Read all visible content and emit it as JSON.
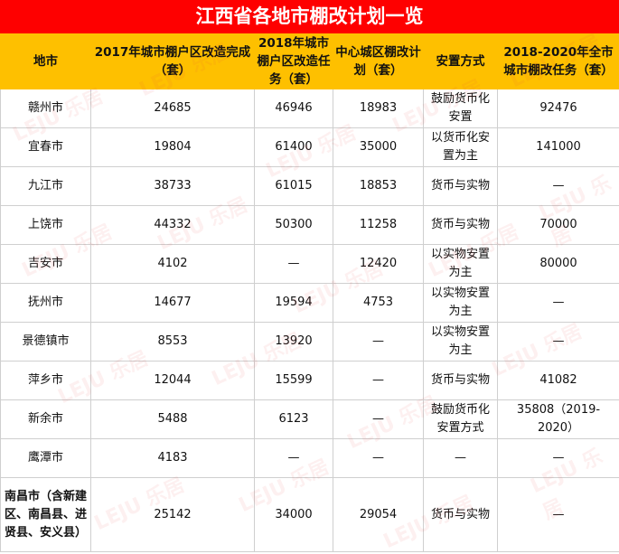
{
  "title": "江西省各地市棚改计划一览",
  "headers": [
    "地市",
    "2017年城市棚户区改造完成（套）",
    "2018年城市棚户区改造任务（套）",
    "中心城区棚改计划（套）",
    "安置方式",
    "2018-2020年全市城市棚改任务（套）"
  ],
  "rows": [
    [
      "赣州市",
      "24685",
      "46946",
      "18983",
      "鼓励货币化安置",
      "92476"
    ],
    [
      "宜春市",
      "19804",
      "61400",
      "35000",
      "以货币化安置为主",
      "141000"
    ],
    [
      "九江市",
      "38733",
      "61015",
      "18853",
      "货币与实物",
      "—"
    ],
    [
      "上饶市",
      "44332",
      "50300",
      "11258",
      "货币与实物",
      "70000"
    ],
    [
      "吉安市",
      "4102",
      "—",
      "12420",
      "以实物安置为主",
      "80000"
    ],
    [
      "抚州市",
      "14677",
      "19594",
      "4753",
      "以实物安置为主",
      "—"
    ],
    [
      "景德镇市",
      "8553",
      "13920",
      "—",
      "以实物安置为主",
      "—"
    ],
    [
      "萍乡市",
      "12044",
      "15599",
      "—",
      "货币与实物",
      "41082"
    ],
    [
      "新余市",
      "5488",
      "6123",
      "—",
      "鼓励货币化安置方式",
      "35808（2019-2020）"
    ],
    [
      "鹰潭市",
      "4183",
      "—",
      "—",
      "—",
      "—"
    ],
    [
      "南昌市（含新建区、南昌县、进贤县、安义县）",
      "25142",
      "34000",
      "29054",
      "货币与实物",
      "—"
    ]
  ],
  "watermark": "LEJU 乐居",
  "colors": {
    "title_bg": "#fe0000",
    "header_bg": "#fec000"
  }
}
